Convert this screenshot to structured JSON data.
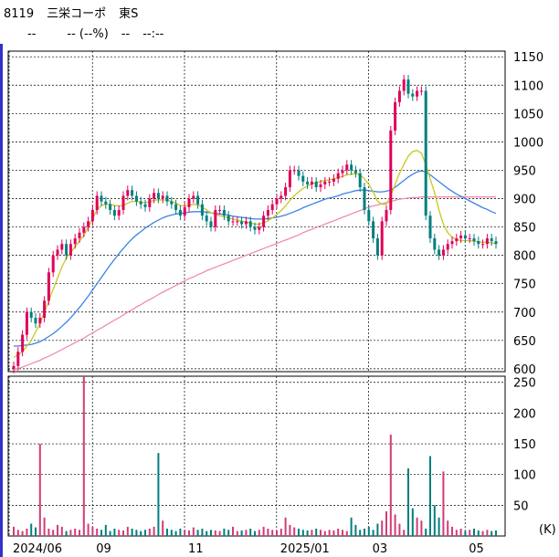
{
  "header": {
    "code": "8119",
    "name": "三栄コーポ",
    "market": "東S",
    "price": "--",
    "change": "-- (--%)",
    "volume": "--",
    "time": "--:--"
  },
  "colors": {
    "up": "#e0005a",
    "down": "#007f7f",
    "ma_short": "#c8c820",
    "ma_mid": "#3c82e6",
    "ma_long": "#f08cb4",
    "grid": "#000000",
    "volume": "#d23c78"
  },
  "chart_data": [
    {
      "type": "candlestick",
      "title": "",
      "x_tick_labels": [
        "2024/06",
        "09",
        "11",
        "2025/01",
        "03",
        "05"
      ],
      "ylim": [
        595,
        1160
      ],
      "y_ticks": [
        600,
        650,
        700,
        750,
        800,
        850,
        900,
        950,
        1000,
        1050,
        1100,
        1150
      ],
      "series_close": [
        605,
        630,
        660,
        700,
        690,
        680,
        690,
        720,
        770,
        800,
        810,
        820,
        800,
        820,
        830,
        840,
        850,
        860,
        880,
        905,
        895,
        890,
        880,
        870,
        880,
        905,
        915,
        905,
        895,
        890,
        885,
        900,
        910,
        900,
        905,
        895,
        890,
        880,
        870,
        885,
        900,
        905,
        890,
        870,
        860,
        850,
        880,
        880,
        870,
        860,
        860,
        860,
        855,
        860,
        850,
        845,
        850,
        870,
        880,
        890,
        900,
        905,
        920,
        950,
        950,
        940,
        930,
        925,
        930,
        920,
        925,
        930,
        930,
        935,
        945,
        950,
        960,
        950,
        945,
        920,
        880,
        860,
        830,
        800,
        860,
        880,
        1020,
        1070,
        1090,
        1110,
        1085,
        1080,
        1090,
        1090,
        870,
        830,
        810,
        800,
        810,
        820,
        825,
        830,
        835,
        830,
        830,
        825,
        820,
        820,
        830,
        825,
        820
      ],
      "ma_short": [
        620,
        625,
        630,
        640,
        650,
        665,
        680,
        700,
        720,
        740,
        760,
        780,
        795,
        805,
        815,
        825,
        835,
        850,
        865,
        880,
        888,
        890,
        890,
        888,
        887,
        888,
        892,
        895,
        895,
        894,
        893,
        894,
        897,
        898,
        898,
        897,
        895,
        892,
        888,
        887,
        888,
        890,
        889,
        885,
        880,
        875,
        872,
        870,
        868,
        866,
        864,
        862,
        860,
        859,
        857,
        855,
        855,
        857,
        861,
        866,
        872,
        879,
        887,
        897,
        905,
        912,
        918,
        922,
        926,
        928,
        930,
        932,
        933,
        935,
        937,
        939,
        942,
        943,
        944,
        942,
        935,
        925,
        912,
        895,
        890,
        890,
        905,
        925,
        945,
        960,
        975,
        983,
        985,
        980,
        960,
        935,
        910,
        880,
        855,
        840,
        832,
        828,
        826,
        826,
        826,
        825,
        824,
        823,
        823,
        822,
        821
      ],
      "ma_mid": [
        640,
        640,
        641,
        642,
        643,
        645,
        648,
        652,
        657,
        662,
        668,
        675,
        682,
        690,
        699,
        708,
        718,
        728,
        739,
        750,
        761,
        772,
        783,
        793,
        803,
        812,
        821,
        829,
        836,
        842,
        848,
        853,
        858,
        862,
        866,
        869,
        871,
        873,
        874,
        875,
        876,
        877,
        877,
        877,
        876,
        875,
        874,
        873,
        872,
        871,
        869,
        868,
        867,
        866,
        865,
        864,
        864,
        864,
        865,
        866,
        867,
        869,
        871,
        874,
        877,
        880,
        884,
        887,
        890,
        893,
        896,
        899,
        901,
        903,
        905,
        908,
        910,
        912,
        914,
        915,
        915,
        914,
        913,
        912,
        912,
        913,
        915,
        920,
        926,
        932,
        938,
        943,
        947,
        949,
        947,
        942,
        936,
        930,
        924,
        918,
        913,
        908,
        904,
        900,
        896,
        892,
        888,
        884,
        881,
        877,
        874
      ],
      "ma_long": [
        598,
        600,
        603,
        606,
        609,
        612,
        615,
        619,
        622,
        626,
        630,
        634,
        638,
        642,
        646,
        650,
        654,
        659,
        663,
        668,
        672,
        677,
        681,
        686,
        690,
        695,
        700,
        704,
        709,
        713,
        718,
        722,
        726,
        731,
        735,
        739,
        743,
        747,
        751,
        755,
        759,
        762,
        766,
        769,
        773,
        776,
        779,
        782,
        785,
        788,
        791,
        794,
        797,
        800,
        803,
        806,
        809,
        812,
        815,
        818,
        821,
        824,
        827,
        830,
        833,
        836,
        840,
        843,
        846,
        849,
        852,
        855,
        858,
        861,
        864,
        867,
        870,
        873,
        876,
        879,
        882,
        885,
        887,
        889,
        891,
        893,
        895,
        897,
        899,
        900,
        901,
        902,
        902,
        903,
        903,
        903,
        903,
        903,
        903,
        903,
        903,
        903,
        903,
        903,
        903,
        903,
        903,
        903,
        903,
        903,
        903
      ]
    },
    {
      "type": "bar",
      "title": "",
      "ylabel": "(K)",
      "ylim": [
        0,
        260
      ],
      "y_ticks": [
        50,
        100,
        150,
        200,
        250
      ],
      "values": [
        15,
        10,
        8,
        12,
        20,
        14,
        150,
        30,
        12,
        10,
        18,
        15,
        8,
        10,
        12,
        10,
        260,
        20,
        15,
        12,
        10,
        18,
        8,
        12,
        10,
        9,
        15,
        12,
        10,
        8,
        10,
        12,
        15,
        135,
        25,
        12,
        10,
        8,
        12,
        10,
        9,
        14,
        10,
        12,
        8,
        10,
        9,
        8,
        12,
        10,
        15,
        8,
        9,
        10,
        12,
        8,
        10,
        15,
        12,
        10,
        9,
        12,
        30,
        18,
        14,
        12,
        10,
        9,
        10,
        12,
        10,
        8,
        10,
        9,
        12,
        10,
        8,
        30,
        18,
        10,
        12,
        15,
        10,
        20,
        25,
        40,
        165,
        35,
        20,
        10,
        110,
        45,
        30,
        25,
        12,
        130,
        50,
        30,
        105,
        25,
        15,
        10,
        12,
        8,
        10,
        12,
        9,
        8,
        10,
        8,
        9
      ]
    }
  ]
}
